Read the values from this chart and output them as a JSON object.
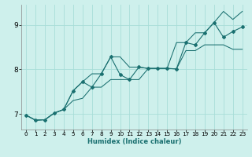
{
  "xlabel": "Humidex (Indice chaleur)",
  "bg_color": "#cef0ec",
  "line_color": "#1a7070",
  "grid_color": "#a8ddd8",
  "xlim": [
    -0.5,
    23.5
  ],
  "ylim": [
    6.65,
    9.45
  ],
  "x_ticks": [
    0,
    1,
    2,
    3,
    4,
    5,
    6,
    7,
    8,
    9,
    10,
    11,
    12,
    13,
    14,
    15,
    16,
    17,
    18,
    19,
    20,
    21,
    22,
    23
  ],
  "y_ticks": [
    7,
    8,
    9
  ],
  "main_x": [
    0,
    1,
    2,
    3,
    4,
    5,
    6,
    7,
    8,
    9,
    10,
    11,
    12,
    13,
    14,
    15,
    16,
    17,
    18,
    19,
    20,
    21,
    22,
    23
  ],
  "main_y": [
    6.97,
    6.86,
    6.87,
    7.02,
    7.1,
    7.52,
    7.72,
    7.6,
    7.9,
    8.28,
    7.88,
    7.77,
    8.05,
    8.02,
    8.02,
    8.02,
    8.01,
    8.6,
    8.55,
    8.82,
    9.05,
    8.72,
    8.85,
    8.95
  ],
  "upper_x": [
    0,
    1,
    2,
    3,
    4,
    5,
    6,
    7,
    8,
    9,
    10,
    11,
    12,
    13,
    14,
    15,
    16,
    17,
    18,
    19,
    20,
    21,
    22,
    23
  ],
  "upper_y": [
    6.97,
    6.86,
    6.87,
    7.02,
    7.1,
    7.52,
    7.72,
    7.9,
    7.9,
    8.28,
    8.28,
    8.05,
    8.05,
    8.02,
    8.02,
    8.02,
    8.6,
    8.6,
    8.82,
    8.82,
    9.05,
    9.3,
    9.12,
    9.3
  ],
  "lower_x": [
    0,
    1,
    2,
    3,
    4,
    5,
    6,
    7,
    8,
    9,
    10,
    11,
    12,
    13,
    14,
    15,
    16,
    17,
    18,
    19,
    20,
    21,
    22,
    23
  ],
  "lower_y": [
    6.97,
    6.86,
    6.87,
    7.02,
    7.1,
    7.3,
    7.35,
    7.6,
    7.6,
    7.77,
    7.77,
    7.77,
    7.77,
    8.02,
    8.02,
    8.02,
    8.01,
    8.42,
    8.42,
    8.55,
    8.55,
    8.55,
    8.45,
    8.45
  ]
}
